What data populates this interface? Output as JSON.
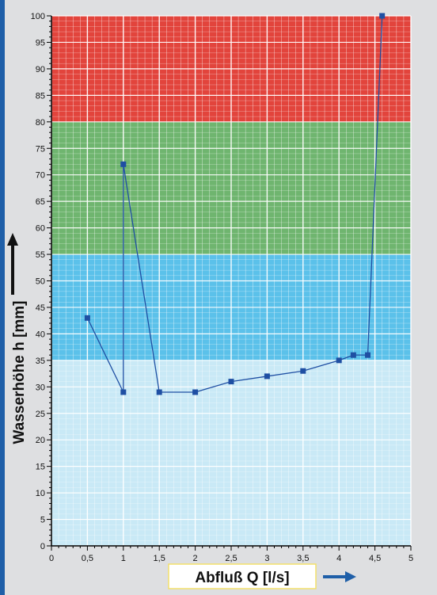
{
  "chart_data": {
    "type": "line",
    "xlabel": "Abfluß Q [l/s]",
    "ylabel": "Wasserhöhe h [mm]",
    "xlim": [
      0,
      5
    ],
    "ylim": [
      0,
      100
    ],
    "x_ticks": [
      "0",
      "0,5",
      "1",
      "1,5",
      "2",
      "2,5",
      "3",
      "3,5",
      "4",
      "4,5",
      "5"
    ],
    "y_ticks": [
      "0",
      "5",
      "10",
      "15",
      "20",
      "25",
      "30",
      "35",
      "40",
      "45",
      "50",
      "55",
      "60",
      "65",
      "70",
      "75",
      "80",
      "85",
      "90",
      "95",
      "100"
    ],
    "grid": true,
    "bands": [
      {
        "from": 0,
        "to": 35,
        "color": "#c9e9f6"
      },
      {
        "from": 35,
        "to": 55,
        "color": "#5bc1ea"
      },
      {
        "from": 55,
        "to": 80,
        "color": "#6fb56f"
      },
      {
        "from": 80,
        "to": 100,
        "color": "#e2443c"
      }
    ],
    "series": [
      {
        "color": "#1f4fa3",
        "x": [
          0.5,
          1,
          1,
          1.5,
          2,
          2.5,
          3,
          3.5,
          4,
          4.2,
          4.4,
          4.6
        ],
        "y": [
          43,
          29,
          72,
          29,
          29,
          31,
          32,
          33,
          35,
          36,
          36,
          100
        ]
      }
    ],
    "arrow_color": "#1f5fa8",
    "xlabel_box_color": "#f3e06a"
  }
}
